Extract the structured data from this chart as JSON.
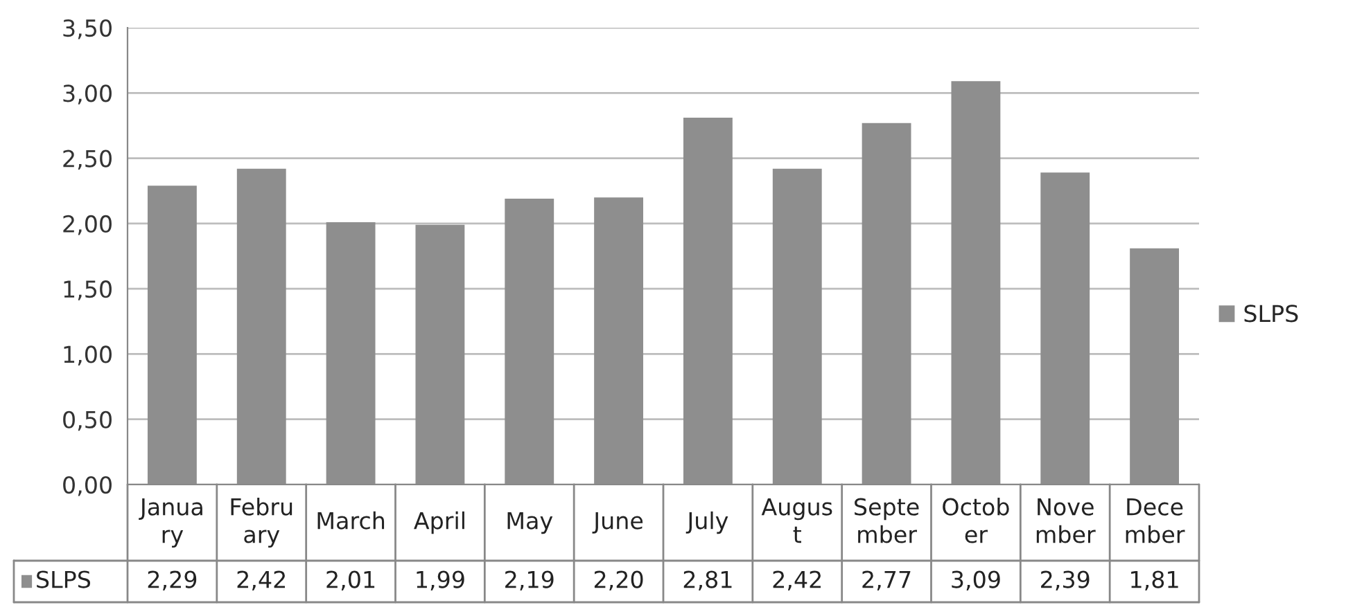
{
  "chart_data": {
    "type": "bar",
    "categories": [
      "Janua\nry",
      "Febru\nary",
      "March",
      "April",
      "May",
      "June",
      "July",
      "Augus\nt",
      "Septe\nmber",
      "Octob\ner",
      "Nove\nmber",
      "Dece\nmber"
    ],
    "series": [
      {
        "name": "SLPS",
        "color": "#8e8e8e",
        "values": [
          2.29,
          2.42,
          2.01,
          1.99,
          2.19,
          2.2,
          2.81,
          2.42,
          2.77,
          3.09,
          2.39,
          1.81
        ],
        "value_labels": [
          "2,29",
          "2,42",
          "2,01",
          "1,99",
          "2,19",
          "2,20",
          "2,81",
          "2,42",
          "2,77",
          "3,09",
          "2,39",
          "1,81"
        ]
      }
    ],
    "ylim": [
      0,
      3.5
    ],
    "yticks": [
      {
        "value": 0,
        "label": "0,00"
      },
      {
        "value": 0.5,
        "label": "0,50"
      },
      {
        "value": 1,
        "label": "1,00"
      },
      {
        "value": 1.5,
        "label": "1,50"
      },
      {
        "value": 2,
        "label": "2,00"
      },
      {
        "value": 2.5,
        "label": "2,50"
      },
      {
        "value": 3,
        "label": "3,00"
      },
      {
        "value": 3.5,
        "label": "3,50"
      }
    ],
    "grid": "y",
    "legend": "right"
  }
}
